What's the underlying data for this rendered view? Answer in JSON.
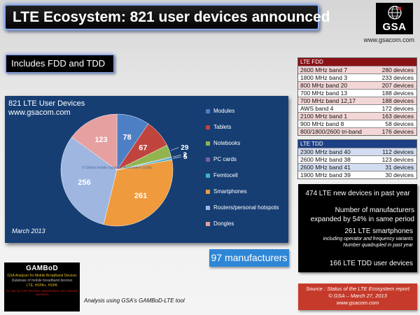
{
  "header": {
    "title": "LTE Ecosystem: 821 user devices announced",
    "logo_text": "GSA",
    "website": "www.gsacom.com"
  },
  "badge": {
    "fdd_tdd": "Includes FDD and TDD"
  },
  "chart_panel": {
    "title": "821 LTE User Devices",
    "subtitle": "www.gsacom.com",
    "watermark": "© Global mobile Suppliers Association (GSA)",
    "date": "March 2013"
  },
  "chart_data": {
    "type": "pie",
    "title": "821 LTE User Devices",
    "total": 821,
    "legend_position": "right",
    "slices": [
      {
        "label": "Modules",
        "value": 78,
        "color": "#4d7fc4"
      },
      {
        "label": "Tablets",
        "value": 67,
        "color": "#c0443e"
      },
      {
        "label": "Notebooks",
        "value": 29,
        "color": "#92b44f"
      },
      {
        "label": "PC cards",
        "value": 2,
        "color": "#7a5fa5"
      },
      {
        "label": "Femtocell",
        "value": 5,
        "color": "#3cb2c9"
      },
      {
        "label": "Smartphones",
        "value": 261,
        "color": "#ef9a3c"
      },
      {
        "label": "Routers/personal hotspots",
        "value": 256,
        "color": "#9fb6e0"
      },
      {
        "label": "Dongles",
        "value": 123,
        "color": "#e6a0a0"
      }
    ]
  },
  "fdd_table": {
    "header": "LTE FDD",
    "rows": [
      {
        "band": "2600 MHz band 7",
        "count": "280 devices"
      },
      {
        "band": "1800 MHz band 3",
        "count": "233 devices"
      },
      {
        "band": "800 MHz band 20",
        "count": "207 devices"
      },
      {
        "band": "700 MHz band 13",
        "count": "188 devices"
      },
      {
        "band": "700 MHz band 12,17",
        "count": "188 devices"
      },
      {
        "band": "AWS band 4",
        "count": "172 devices"
      },
      {
        "band": "2100 MHz band 1",
        "count": "163 devices"
      },
      {
        "band": "900 MHz band 8",
        "count": "58 devices"
      },
      {
        "band": "800/1800/2600 tri-band",
        "count": "176 devices"
      }
    ]
  },
  "tdd_table": {
    "header": "LTE TDD",
    "rows": [
      {
        "band": "2300 MHz band 40",
        "count": "112 devices"
      },
      {
        "band": "2600 MHz band 38",
        "count": "123 devices"
      },
      {
        "band": "2600 MHz band 41",
        "count": "31 devices"
      },
      {
        "band": "1900 MHz band 39",
        "count": "30 devices"
      }
    ]
  },
  "stats": {
    "line1": "474 LTE new devices in past year",
    "line2": "Number of manufacturers expanded by 54% in same period",
    "line3": "261 LTE smartphones",
    "line4": "including operator and frequency variants",
    "line5": "Number quadrupled in past year",
    "line6": "166 LTE TDD user devices"
  },
  "manufacturers": "97 manufacturers",
  "source": {
    "line1": "Source : Status of the LTE Ecosystem report",
    "line2": "© GSA – March 27, 2013",
    "line3": "www.gsacom.com"
  },
  "gambod": {
    "title": "GAMBoD",
    "line1": "GSA Analyser for Mobile Broadband Devices",
    "line2": "Database of mobile broadband devices",
    "line3": "LTE, HSPA+, HSPA",
    "line4": "for use by GSA Member organisations and network operators",
    "caption": "Analysis using GSA's GAMBoD-LTE tool"
  }
}
